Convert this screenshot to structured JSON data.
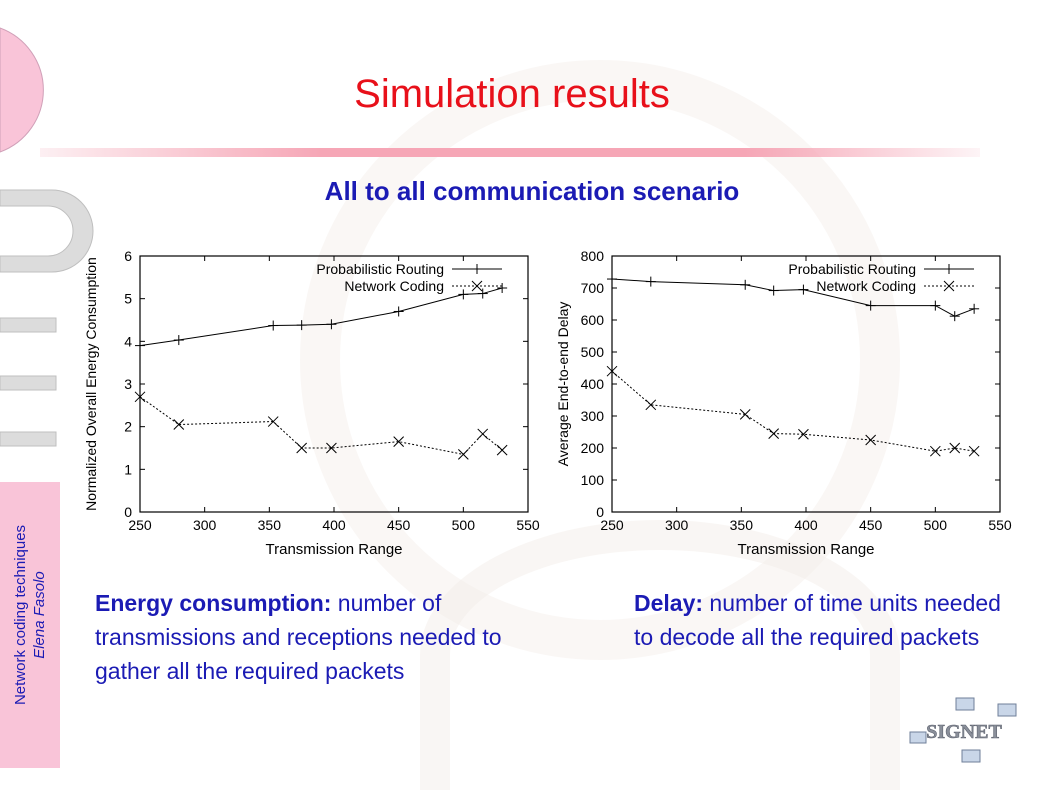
{
  "slide": {
    "title": "Simulation results",
    "subtitle": "All to all communication scenario",
    "footer_topic": "Network coding techniques",
    "footer_author": "Elena Fasolo",
    "brand_logo_text": "SIGNET"
  },
  "captions": [
    {
      "title": "Energy consumption:",
      "text": " number of transmissions and receptions needed to gather all the required packets"
    },
    {
      "title": "Delay:",
      "text": " number of time units needed to decode all the required packets"
    }
  ],
  "colors": {
    "title": "#e8101a",
    "text": "#1b1bb4",
    "side_strip": "#f9c4d8"
  },
  "chart_data": [
    {
      "type": "line",
      "xlabel": "Transmission Range",
      "ylabel": "Normalized Overall Energy Consumption",
      "xlim": [
        250,
        550
      ],
      "ylim": [
        0,
        6
      ],
      "xticks": [
        250,
        300,
        350,
        400,
        450,
        500,
        550
      ],
      "yticks": [
        0,
        1,
        2,
        3,
        4,
        5,
        6
      ],
      "legend_position": "top-right",
      "series": [
        {
          "name": "Probabilistic Routing",
          "marker": "+",
          "style": "solid",
          "x": [
            250,
            280,
            353,
            375,
            398,
            450,
            500,
            515,
            530
          ],
          "y": [
            3.9,
            4.03,
            4.37,
            4.38,
            4.4,
            4.7,
            5.1,
            5.12,
            5.25
          ]
        },
        {
          "name": "Network Coding",
          "marker": "x",
          "style": "dashed",
          "x": [
            250,
            280,
            353,
            375,
            398,
            450,
            500,
            515,
            530
          ],
          "y": [
            2.7,
            2.05,
            2.12,
            1.5,
            1.5,
            1.65,
            1.35,
            1.83,
            1.45
          ]
        }
      ]
    },
    {
      "type": "line",
      "xlabel": "Transmission Range",
      "ylabel": "Average End-to-end Delay",
      "xlim": [
        250,
        550
      ],
      "ylim": [
        0,
        800
      ],
      "xticks": [
        250,
        300,
        350,
        400,
        450,
        500,
        550
      ],
      "yticks": [
        0,
        100,
        200,
        300,
        400,
        500,
        600,
        700,
        800
      ],
      "legend_position": "top-right",
      "series": [
        {
          "name": "Probabilistic Routing",
          "marker": "+",
          "style": "solid",
          "x": [
            250,
            280,
            353,
            375,
            398,
            450,
            500,
            515,
            530
          ],
          "y": [
            728,
            720,
            710,
            692,
            695,
            645,
            645,
            612,
            635
          ]
        },
        {
          "name": "Network Coding",
          "marker": "x",
          "style": "dashed",
          "x": [
            250,
            280,
            353,
            375,
            398,
            450,
            500,
            515,
            530
          ],
          "y": [
            440,
            335,
            305,
            245,
            243,
            225,
            190,
            200,
            190
          ]
        }
      ]
    }
  ]
}
